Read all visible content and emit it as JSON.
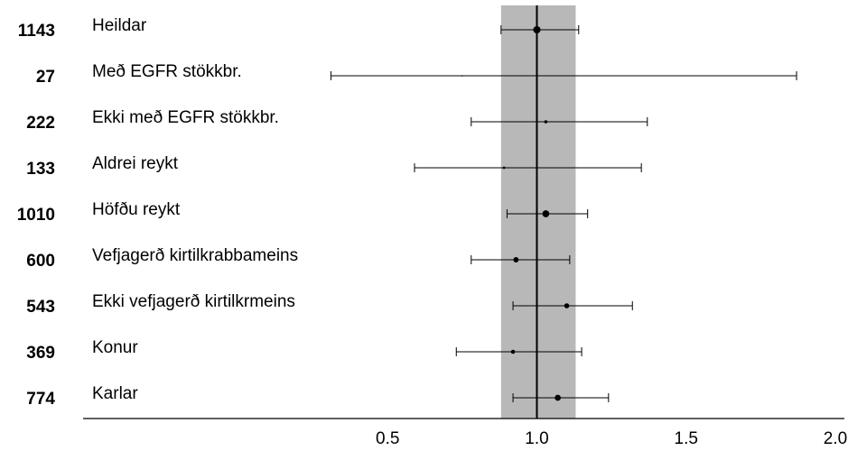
{
  "chart_data": {
    "type": "forest",
    "reference_x": 1.0,
    "xlim": [
      0,
      2.0
    ],
    "x_ticks": [
      0.5,
      1.0,
      1.5,
      2.0
    ],
    "x_tick_labels": [
      "0.5",
      "1.0",
      "1.5",
      "2.0"
    ],
    "shaded_band": [
      0.88,
      1.13
    ],
    "rows": [
      {
        "n": "1143",
        "label": "Heildar",
        "estimate": 1.0,
        "ci_low": 0.88,
        "ci_high": 1.14
      },
      {
        "n": "27",
        "label": "Með EGFR stökkbr.",
        "estimate": 0.75,
        "ci_low": 0.31,
        "ci_high": 1.87
      },
      {
        "n": "222",
        "label": "Ekki með EGFR stökkbr.",
        "estimate": 1.03,
        "ci_low": 0.78,
        "ci_high": 1.37
      },
      {
        "n": "133",
        "label": "Aldrei reykt",
        "estimate": 0.89,
        "ci_low": 0.59,
        "ci_high": 1.35
      },
      {
        "n": "1010",
        "label": "Höfðu reykt",
        "estimate": 1.03,
        "ci_low": 0.9,
        "ci_high": 1.17
      },
      {
        "n": "600",
        "label": "Vefjagerð kirtilkrabbameins",
        "estimate": 0.93,
        "ci_low": 0.78,
        "ci_high": 1.11
      },
      {
        "n": "543",
        "label": "Ekki vefjagerð kirtilkrmeins",
        "estimate": 1.1,
        "ci_low": 0.92,
        "ci_high": 1.32
      },
      {
        "n": "369",
        "label": "Konur",
        "estimate": 0.92,
        "ci_low": 0.73,
        "ci_high": 1.15
      },
      {
        "n": "774",
        "label": "Karlar",
        "estimate": 1.07,
        "ci_low": 0.92,
        "ci_high": 1.24
      }
    ]
  },
  "colors": {
    "band": "#b8b8b8",
    "line": "#000000",
    "text": "#000000"
  }
}
